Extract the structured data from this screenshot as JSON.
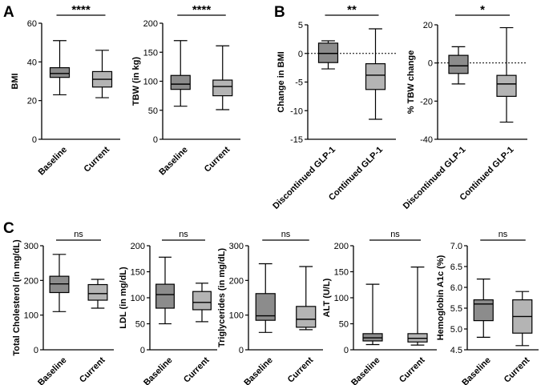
{
  "panels": [
    {
      "letter": "A"
    },
    {
      "letter": "B"
    },
    {
      "letter": "C"
    }
  ],
  "chart_data": [
    {
      "type": "box",
      "panel": "A",
      "ylabel": "BMI",
      "ylim": [
        0,
        60
      ],
      "yticks": [
        0,
        20,
        40,
        60
      ],
      "categories": [
        "Baseline",
        "Current"
      ],
      "boxes": [
        {
          "min": 23,
          "q1": 32,
          "median": 34,
          "q3": 37,
          "max": 51,
          "color": "#8c8c8c"
        },
        {
          "min": 21.5,
          "q1": 27,
          "median": 31,
          "q3": 35,
          "max": 46,
          "color": "#b4b4b4"
        }
      ],
      "significance": "****"
    },
    {
      "type": "box",
      "panel": "A",
      "ylabel": "TBW (in kg)",
      "ylim": [
        0,
        200
      ],
      "yticks": [
        0,
        50,
        100,
        150,
        200
      ],
      "categories": [
        "Baseline",
        "Current"
      ],
      "boxes": [
        {
          "min": 57,
          "q1": 86,
          "median": 95,
          "q3": 110,
          "max": 170,
          "color": "#8c8c8c"
        },
        {
          "min": 51,
          "q1": 75,
          "median": 91,
          "q3": 102,
          "max": 161,
          "color": "#b4b4b4"
        }
      ],
      "significance": "****"
    },
    {
      "type": "box",
      "panel": "B",
      "ylabel": "Change in BMI",
      "ylim": [
        -15,
        5
      ],
      "yticks": [
        -15,
        -10,
        -5,
        0,
        5
      ],
      "categories": [
        "Discontinued GLP-1",
        "Continued GLP-1"
      ],
      "boxes": [
        {
          "min": -2.7,
          "q1": -1.6,
          "median": 0,
          "q3": 1.8,
          "max": 2.2,
          "color": "#8c8c8c"
        },
        {
          "min": -11.5,
          "q1": -6.3,
          "median": -3.8,
          "q3": -1.8,
          "max": 4.3,
          "color": "#b4b4b4"
        }
      ],
      "reference_line": 0,
      "significance": "**"
    },
    {
      "type": "box",
      "panel": "B",
      "ylabel": "% TBW change",
      "ylim": [
        -40,
        20
      ],
      "yticks": [
        -40,
        -20,
        0,
        20
      ],
      "categories": [
        "Discontinued GLP-1",
        "Continued GLP-1"
      ],
      "boxes": [
        {
          "min": -11,
          "q1": -5.5,
          "median": -1.5,
          "q3": 4,
          "max": 8.5,
          "color": "#8c8c8c"
        },
        {
          "min": -31,
          "q1": -17.5,
          "median": -11,
          "q3": -6.5,
          "max": 18.5,
          "color": "#b4b4b4"
        }
      ],
      "reference_line": 0,
      "significance": "*"
    },
    {
      "type": "box",
      "panel": "C",
      "ylabel": "Total Cholesterol (in mg/dL)",
      "ylim": [
        0,
        300
      ],
      "yticks": [
        0,
        100,
        200,
        300
      ],
      "categories": [
        "Baseline",
        "Current"
      ],
      "boxes": [
        {
          "min": 110,
          "q1": 165,
          "median": 190,
          "q3": 212,
          "max": 275,
          "color": "#8c8c8c"
        },
        {
          "min": 120,
          "q1": 143,
          "median": 162,
          "q3": 188,
          "max": 203,
          "color": "#b4b4b4"
        }
      ],
      "significance": "ns"
    },
    {
      "type": "box",
      "panel": "C",
      "ylabel": "LDL (in mg/dL)",
      "ylim": [
        0,
        200
      ],
      "yticks": [
        0,
        50,
        100,
        150,
        200
      ],
      "categories": [
        "Baseline",
        "Current"
      ],
      "boxes": [
        {
          "min": 50,
          "q1": 80,
          "median": 106,
          "q3": 126,
          "max": 178,
          "color": "#8c8c8c"
        },
        {
          "min": 54,
          "q1": 77,
          "median": 91,
          "q3": 112,
          "max": 128,
          "color": "#b4b4b4"
        }
      ],
      "significance": "ns"
    },
    {
      "type": "box",
      "panel": "C",
      "ylabel": "Triglycerides (in mg/dL)",
      "ylim": [
        0,
        300
      ],
      "yticks": [
        0,
        100,
        200,
        300
      ],
      "categories": [
        "Baseline",
        "Current"
      ],
      "boxes": [
        {
          "min": 50,
          "q1": 85,
          "median": 98,
          "q3": 162,
          "max": 248,
          "color": "#8c8c8c"
        },
        {
          "min": 58,
          "q1": 65,
          "median": 88,
          "q3": 125,
          "max": 240,
          "color": "#b4b4b4"
        }
      ],
      "significance": "ns"
    },
    {
      "type": "box",
      "panel": "C",
      "ylabel": "ALT (U/L)",
      "ylim": [
        0,
        200
      ],
      "yticks": [
        0,
        50,
        100,
        150,
        200
      ],
      "categories": [
        "Baseline",
        "Current"
      ],
      "boxes": [
        {
          "min": 10,
          "q1": 17,
          "median": 23,
          "q3": 31,
          "max": 126,
          "color": "#8c8c8c"
        },
        {
          "min": 9,
          "q1": 15,
          "median": 22,
          "q3": 31,
          "max": 159,
          "color": "#b4b4b4"
        }
      ],
      "significance": "ns"
    },
    {
      "type": "box",
      "panel": "C",
      "ylabel": "Hemoglobin A1c (%)",
      "ylim": [
        4.5,
        7.0
      ],
      "yticks": [
        "4.5",
        "5.0",
        "5.5",
        "6.0",
        "6.5",
        "7.0"
      ],
      "categories": [
        "Baseline",
        "Current"
      ],
      "boxes": [
        {
          "min": 4.8,
          "q1": 5.2,
          "median": 5.6,
          "q3": 5.7,
          "max": 6.2,
          "color": "#8c8c8c"
        },
        {
          "min": 4.6,
          "q1": 4.9,
          "median": 5.3,
          "q3": 5.7,
          "max": 5.9,
          "color": "#b4b4b4"
        }
      ],
      "significance": "ns"
    }
  ]
}
